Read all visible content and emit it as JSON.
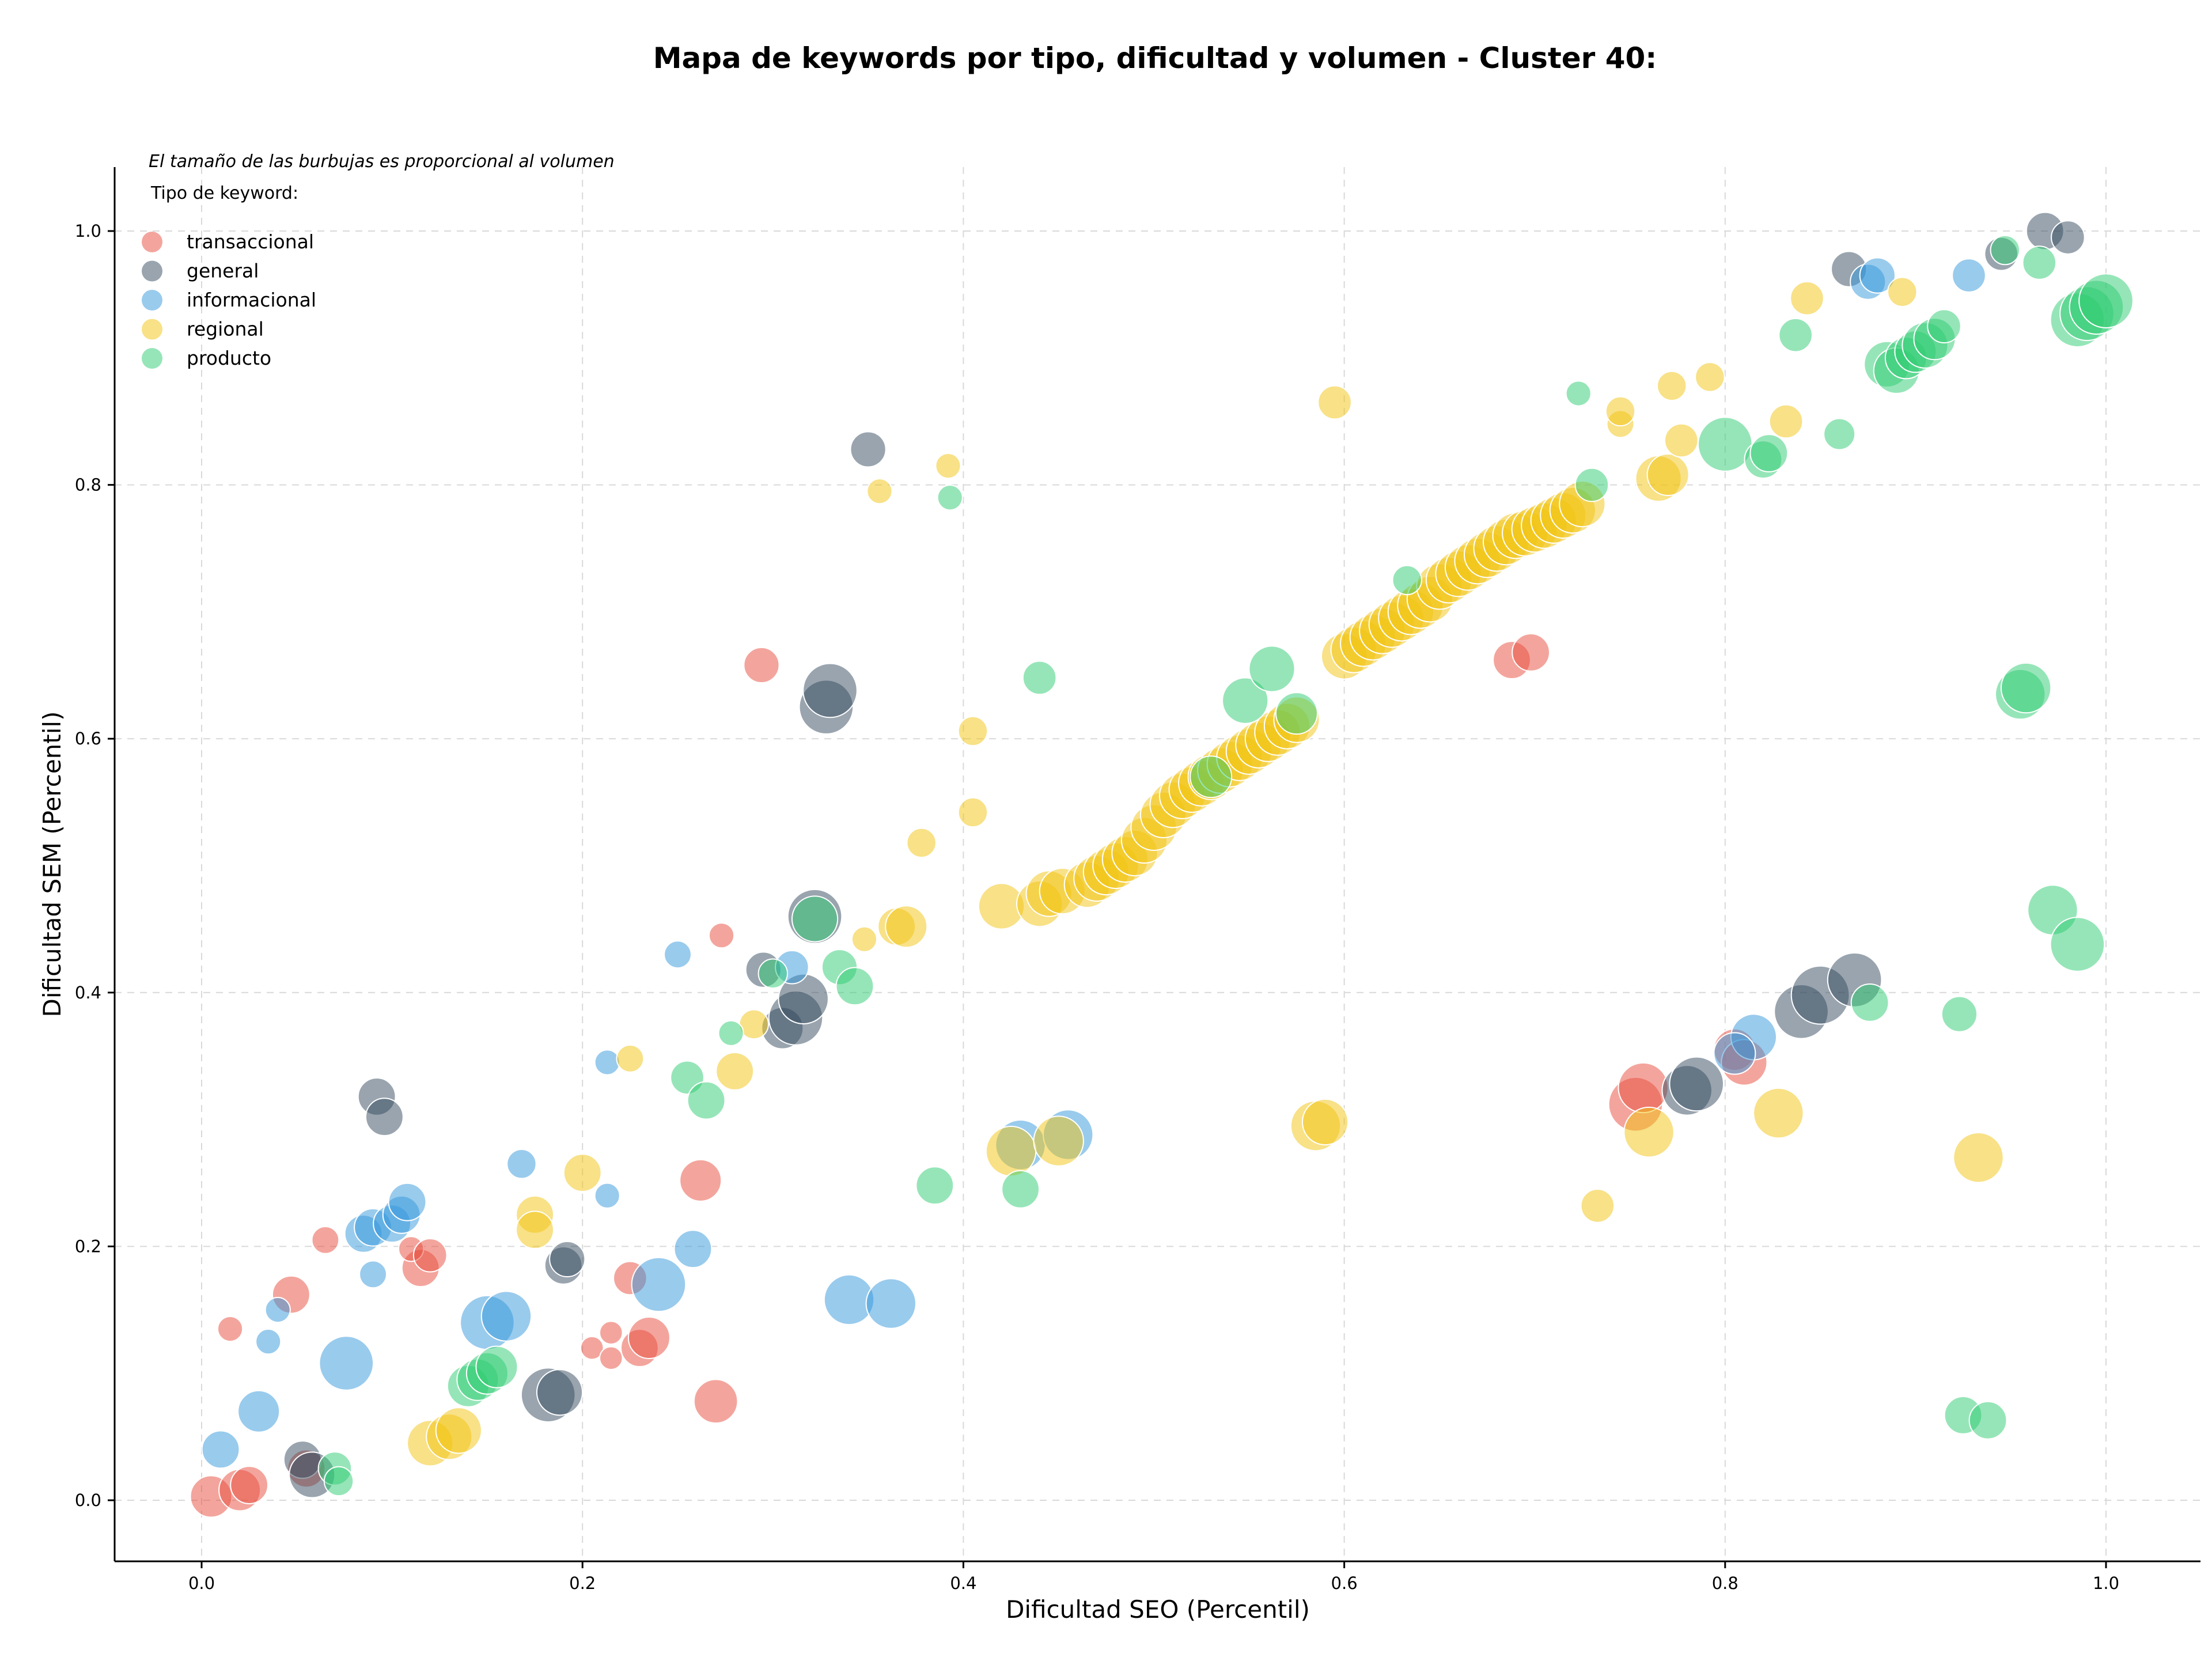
{
  "chart_data": {
    "type": "scatter",
    "title": "Mapa de keywords por tipo, dificultad y volumen - Cluster 40:",
    "xlabel": "Dificultad SEO (Percentil)",
    "ylabel": "Dificultad SEM (Percentil)",
    "xlim": [
      -0.045,
      1.05
    ],
    "ylim": [
      -0.045,
      1.05
    ],
    "xticks": [
      "0.0",
      "0.2",
      "0.4",
      "0.6",
      "0.8",
      "1.0"
    ],
    "yticks": [
      "0.0",
      "0.2",
      "0.4",
      "0.6",
      "0.8",
      "1.0"
    ],
    "grid": true,
    "size_note": "El tamaño de las burbujas es proporcional al volumen",
    "legend_title": "Tipo de keyword:",
    "legend_position": "top-left",
    "series": [
      {
        "name": "transaccional",
        "color": "#e74c3c",
        "points": [
          [
            0.005,
            0.003,
            1.0
          ],
          [
            0.02,
            0.008,
            1.0
          ],
          [
            0.025,
            0.012,
            0.9
          ],
          [
            0.015,
            0.135,
            0.6
          ],
          [
            0.047,
            0.162,
            0.9
          ],
          [
            0.065,
            0.205,
            0.65
          ],
          [
            0.055,
            0.025,
            0.9
          ],
          [
            0.115,
            0.183,
            0.9
          ],
          [
            0.11,
            0.198,
            0.6
          ],
          [
            0.12,
            0.193,
            0.8
          ],
          [
            0.205,
            0.12,
            0.55
          ],
          [
            0.215,
            0.112,
            0.55
          ],
          [
            0.215,
            0.132,
            0.55
          ],
          [
            0.225,
            0.175,
            0.8
          ],
          [
            0.23,
            0.12,
            0.9
          ],
          [
            0.235,
            0.128,
            1.0
          ],
          [
            0.262,
            0.252,
            1.0
          ],
          [
            0.27,
            0.078,
            1.05
          ],
          [
            0.273,
            0.445,
            0.6
          ],
          [
            0.294,
            0.658,
            0.85
          ],
          [
            0.688,
            0.662,
            0.9
          ],
          [
            0.698,
            0.668,
            0.9
          ],
          [
            0.753,
            0.312,
            1.3
          ],
          [
            0.757,
            0.325,
            1.2
          ],
          [
            0.805,
            0.355,
            1.0
          ],
          [
            0.81,
            0.345,
            1.1
          ]
        ]
      },
      {
        "name": "general",
        "color": "#34495e",
        "points": [
          [
            0.053,
            0.032,
            0.9
          ],
          [
            0.058,
            0.02,
            1.1
          ],
          [
            0.092,
            0.318,
            0.9
          ],
          [
            0.096,
            0.302,
            0.9
          ],
          [
            0.182,
            0.083,
            1.3
          ],
          [
            0.188,
            0.085,
            1.1
          ],
          [
            0.19,
            0.185,
            0.9
          ],
          [
            0.192,
            0.19,
            0.85
          ],
          [
            0.295,
            0.418,
            0.85
          ],
          [
            0.305,
            0.372,
            1.0
          ],
          [
            0.312,
            0.38,
            1.3
          ],
          [
            0.316,
            0.395,
            1.2
          ],
          [
            0.322,
            0.46,
            1.3
          ],
          [
            0.328,
            0.625,
            1.3
          ],
          [
            0.33,
            0.638,
            1.3
          ],
          [
            0.35,
            0.828,
            0.85
          ],
          [
            0.78,
            0.323,
            1.2
          ],
          [
            0.785,
            0.328,
            1.3
          ],
          [
            0.84,
            0.385,
            1.3
          ],
          [
            0.85,
            0.398,
            1.4
          ],
          [
            0.868,
            0.41,
            1.3
          ],
          [
            0.865,
            0.97,
            0.85
          ],
          [
            0.945,
            0.982,
            0.8
          ],
          [
            0.968,
            1.0,
            0.9
          ],
          [
            0.98,
            0.995,
            0.8
          ]
        ]
      },
      {
        "name": "informacional",
        "color": "#3498db",
        "points": [
          [
            0.01,
            0.04,
            0.9
          ],
          [
            0.03,
            0.07,
            1.0
          ],
          [
            0.035,
            0.125,
            0.6
          ],
          [
            0.04,
            0.15,
            0.6
          ],
          [
            0.076,
            0.108,
            1.3
          ],
          [
            0.085,
            0.21,
            0.9
          ],
          [
            0.09,
            0.178,
            0.65
          ],
          [
            0.09,
            0.215,
            0.9
          ],
          [
            0.1,
            0.218,
            0.9
          ],
          [
            0.105,
            0.225,
            0.9
          ],
          [
            0.108,
            0.235,
            0.9
          ],
          [
            0.15,
            0.14,
            1.3
          ],
          [
            0.16,
            0.145,
            1.2
          ],
          [
            0.168,
            0.265,
            0.7
          ],
          [
            0.213,
            0.24,
            0.6
          ],
          [
            0.213,
            0.345,
            0.6
          ],
          [
            0.24,
            0.17,
            1.3
          ],
          [
            0.25,
            0.43,
            0.65
          ],
          [
            0.258,
            0.198,
            0.9
          ],
          [
            0.31,
            0.42,
            0.8
          ],
          [
            0.34,
            0.158,
            1.2
          ],
          [
            0.362,
            0.155,
            1.2
          ],
          [
            0.43,
            0.28,
            1.2
          ],
          [
            0.455,
            0.288,
            1.2
          ],
          [
            0.815,
            0.365,
            1.1
          ],
          [
            0.805,
            0.352,
            1.0
          ],
          [
            0.875,
            0.96,
            0.85
          ],
          [
            0.88,
            0.965,
            0.85
          ],
          [
            0.928,
            0.965,
            0.8
          ]
        ]
      },
      {
        "name": "regional",
        "color": "#f1c40f",
        "points": [
          [
            0.12,
            0.045,
            1.1
          ],
          [
            0.13,
            0.05,
            1.1
          ],
          [
            0.135,
            0.055,
            1.1
          ],
          [
            0.175,
            0.225,
            0.9
          ],
          [
            0.175,
            0.213,
            0.9
          ],
          [
            0.2,
            0.258,
            0.9
          ],
          [
            0.225,
            0.348,
            0.65
          ],
          [
            0.28,
            0.338,
            0.9
          ],
          [
            0.29,
            0.375,
            0.7
          ],
          [
            0.348,
            0.442,
            0.6
          ],
          [
            0.356,
            0.795,
            0.6
          ],
          [
            0.365,
            0.452,
            0.9
          ],
          [
            0.37,
            0.452,
            1.0
          ],
          [
            0.378,
            0.518,
            0.7
          ],
          [
            0.392,
            0.815,
            0.6
          ],
          [
            0.405,
            0.606,
            0.7
          ],
          [
            0.405,
            0.542,
            0.7
          ],
          [
            0.42,
            0.468,
            1.1
          ],
          [
            0.425,
            0.275,
            1.2
          ],
          [
            0.44,
            0.47,
            1.1
          ],
          [
            0.45,
            0.283,
            1.2
          ],
          [
            0.445,
            0.478,
            1.1
          ],
          [
            0.452,
            0.48,
            1.1
          ],
          [
            0.465,
            0.485,
            1.1
          ],
          [
            0.47,
            0.49,
            1.1
          ],
          [
            0.475,
            0.495,
            1.1
          ],
          [
            0.48,
            0.5,
            1.1
          ],
          [
            0.485,
            0.505,
            1.1
          ],
          [
            0.49,
            0.51,
            1.1
          ],
          [
            0.495,
            0.52,
            1.1
          ],
          [
            0.5,
            0.53,
            1.1
          ],
          [
            0.505,
            0.54,
            1.1
          ],
          [
            0.51,
            0.548,
            1.1
          ],
          [
            0.515,
            0.555,
            1.1
          ],
          [
            0.52,
            0.56,
            1.1
          ],
          [
            0.525,
            0.565,
            1.1
          ],
          [
            0.53,
            0.57,
            1.1
          ],
          [
            0.535,
            0.575,
            1.1
          ],
          [
            0.54,
            0.58,
            1.1
          ],
          [
            0.545,
            0.585,
            1.1
          ],
          [
            0.55,
            0.59,
            1.1
          ],
          [
            0.555,
            0.595,
            1.1
          ],
          [
            0.56,
            0.6,
            1.1
          ],
          [
            0.565,
            0.605,
            1.1
          ],
          [
            0.57,
            0.61,
            1.1
          ],
          [
            0.575,
            0.615,
            1.1
          ],
          [
            0.585,
            0.295,
            1.2
          ],
          [
            0.59,
            0.298,
            1.1
          ],
          [
            0.595,
            0.865,
            0.8
          ],
          [
            0.6,
            0.665,
            1.1
          ],
          [
            0.605,
            0.67,
            1.1
          ],
          [
            0.61,
            0.675,
            1.1
          ],
          [
            0.615,
            0.68,
            1.1
          ],
          [
            0.62,
            0.685,
            1.1
          ],
          [
            0.625,
            0.69,
            1.1
          ],
          [
            0.63,
            0.695,
            1.1
          ],
          [
            0.635,
            0.7,
            1.1
          ],
          [
            0.64,
            0.705,
            1.1
          ],
          [
            0.645,
            0.71,
            1.1
          ],
          [
            0.65,
            0.72,
            1.1
          ],
          [
            0.655,
            0.725,
            1.1
          ],
          [
            0.66,
            0.73,
            1.1
          ],
          [
            0.665,
            0.735,
            1.1
          ],
          [
            0.67,
            0.74,
            1.1
          ],
          [
            0.675,
            0.745,
            1.1
          ],
          [
            0.68,
            0.75,
            1.1
          ],
          [
            0.685,
            0.755,
            1.1
          ],
          [
            0.69,
            0.76,
            1.1
          ],
          [
            0.695,
            0.762,
            1.1
          ],
          [
            0.7,
            0.765,
            1.1
          ],
          [
            0.705,
            0.768,
            1.1
          ],
          [
            0.71,
            0.772,
            1.1
          ],
          [
            0.715,
            0.776,
            1.1
          ],
          [
            0.72,
            0.78,
            1.1
          ],
          [
            0.725,
            0.785,
            1.1
          ],
          [
            0.733,
            0.232,
            0.8
          ],
          [
            0.745,
            0.848,
            0.65
          ],
          [
            0.745,
            0.858,
            0.7
          ],
          [
            0.76,
            0.29,
            1.2
          ],
          [
            0.765,
            0.805,
            1.1
          ],
          [
            0.77,
            0.808,
            1.0
          ],
          [
            0.772,
            0.878,
            0.7
          ],
          [
            0.777,
            0.835,
            0.8
          ],
          [
            0.792,
            0.885,
            0.7
          ],
          [
            0.828,
            0.305,
            1.2
          ],
          [
            0.832,
            0.85,
            0.8
          ],
          [
            0.843,
            0.947,
            0.8
          ],
          [
            0.893,
            0.952,
            0.7
          ],
          [
            0.933,
            0.27,
            1.2
          ]
        ]
      },
      {
        "name": "producto",
        "color": "#2ecc71",
        "points": [
          [
            0.07,
            0.025,
            0.8
          ],
          [
            0.072,
            0.015,
            0.7
          ],
          [
            0.14,
            0.09,
            1.0
          ],
          [
            0.145,
            0.095,
            1.0
          ],
          [
            0.15,
            0.1,
            1.0
          ],
          [
            0.155,
            0.105,
            1.0
          ],
          [
            0.255,
            0.333,
            0.8
          ],
          [
            0.265,
            0.315,
            0.9
          ],
          [
            0.278,
            0.368,
            0.6
          ],
          [
            0.3,
            0.415,
            0.7
          ],
          [
            0.322,
            0.458,
            1.1
          ],
          [
            0.335,
            0.42,
            0.85
          ],
          [
            0.343,
            0.405,
            0.9
          ],
          [
            0.385,
            0.248,
            0.9
          ],
          [
            0.393,
            0.79,
            0.6
          ],
          [
            0.43,
            0.245,
            0.9
          ],
          [
            0.44,
            0.648,
            0.8
          ],
          [
            0.53,
            0.57,
            1.0
          ],
          [
            0.548,
            0.63,
            1.1
          ],
          [
            0.562,
            0.655,
            1.1
          ],
          [
            0.575,
            0.62,
            1.0
          ],
          [
            0.633,
            0.725,
            0.7
          ],
          [
            0.723,
            0.872,
            0.6
          ],
          [
            0.73,
            0.8,
            0.8
          ],
          [
            0.8,
            0.832,
            1.3
          ],
          [
            0.82,
            0.82,
            0.9
          ],
          [
            0.823,
            0.825,
            0.9
          ],
          [
            0.837,
            0.918,
            0.8
          ],
          [
            0.86,
            0.84,
            0.75
          ],
          [
            0.876,
            0.392,
            0.9
          ],
          [
            0.885,
            0.895,
            1.1
          ],
          [
            0.89,
            0.89,
            1.1
          ],
          [
            0.895,
            0.9,
            1.0
          ],
          [
            0.9,
            0.905,
            1.0
          ],
          [
            0.905,
            0.91,
            1.1
          ],
          [
            0.91,
            0.915,
            1.0
          ],
          [
            0.915,
            0.925,
            0.8
          ],
          [
            0.923,
            0.383,
            0.85
          ],
          [
            0.925,
            0.067,
            0.9
          ],
          [
            0.938,
            0.063,
            0.9
          ],
          [
            0.947,
            0.985,
            0.7
          ],
          [
            0.955,
            0.635,
            1.2
          ],
          [
            0.958,
            0.64,
            1.2
          ],
          [
            0.965,
            0.975,
            0.8
          ],
          [
            0.972,
            0.465,
            1.2
          ],
          [
            0.985,
            0.438,
            1.3
          ],
          [
            0.985,
            0.93,
            1.3
          ],
          [
            0.99,
            0.935,
            1.3
          ],
          [
            0.995,
            0.94,
            1.3
          ],
          [
            1.0,
            0.945,
            1.3
          ]
        ]
      }
    ]
  }
}
